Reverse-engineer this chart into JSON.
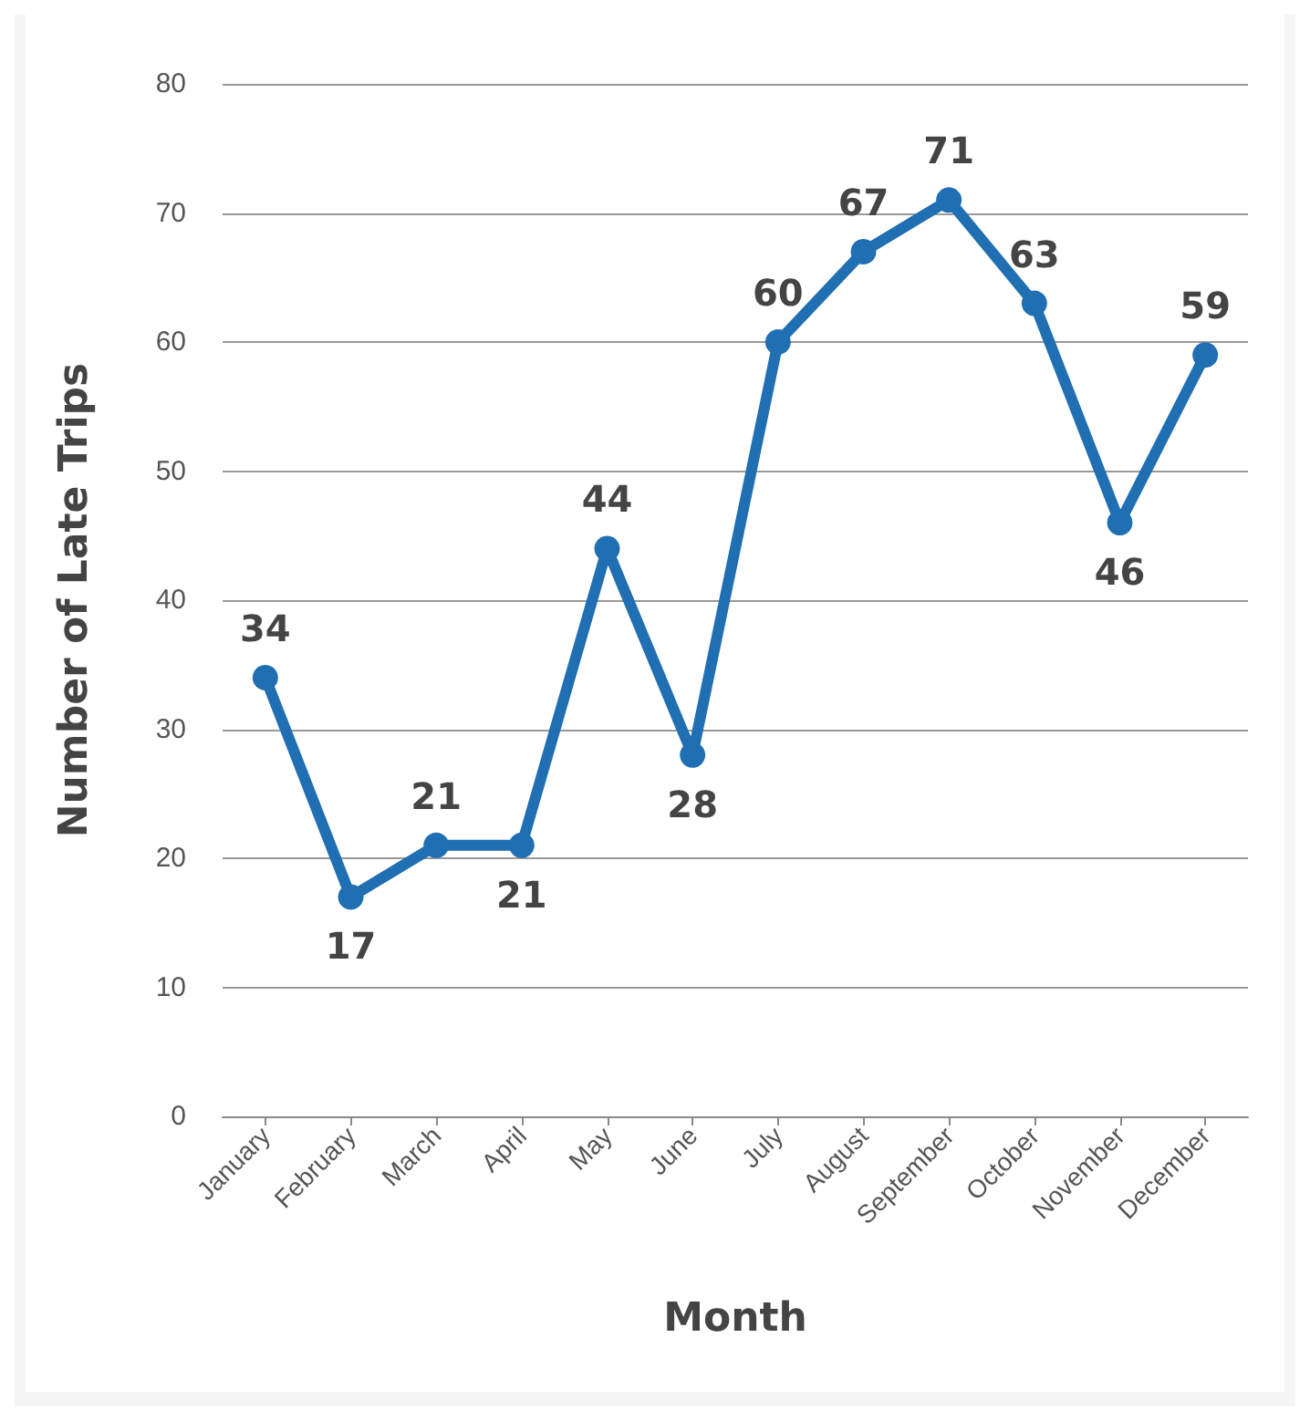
{
  "chart_data": {
    "type": "line",
    "xlabel": "Month",
    "ylabel": "Number of Late Trips",
    "categories": [
      "January",
      "February",
      "March",
      "April",
      "May",
      "June",
      "July",
      "August",
      "September",
      "October",
      "November",
      "December"
    ],
    "series": [
      {
        "color": "#1f6fb2",
        "values": [
          34,
          17,
          21,
          21,
          44,
          28,
          60,
          67,
          71,
          63,
          46,
          59
        ]
      }
    ],
    "ylim": [
      0,
      80
    ],
    "yticks": [
      0,
      10,
      20,
      30,
      40,
      50,
      60,
      70,
      80
    ],
    "grid": "y",
    "marker": "circle",
    "line_style": "solid",
    "data_labels": true
  }
}
